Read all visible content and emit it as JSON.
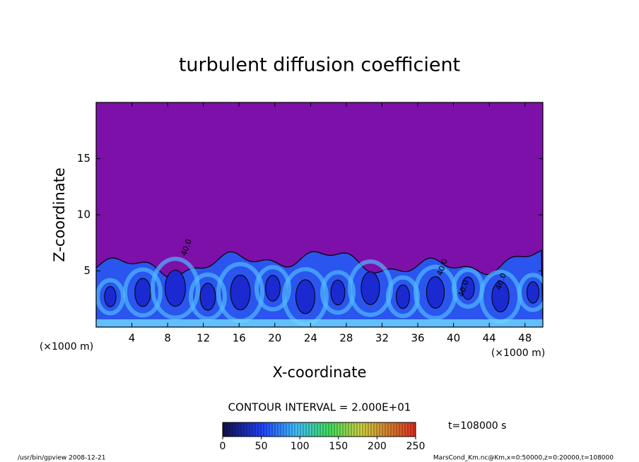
{
  "chart_data": {
    "type": "contour",
    "title": "turbulent diffusion coefficient",
    "xlabel": "X-coordinate",
    "ylabel": "Z-coordinate",
    "x_unit_label": "(×1000 m)",
    "y_unit_label": "(×1000 m)",
    "xlim": [
      0,
      50
    ],
    "xticks": [
      4,
      8,
      12,
      16,
      20,
      24,
      28,
      32,
      36,
      40,
      44,
      48
    ],
    "ylim": [
      0,
      20
    ],
    "yticks": [
      5,
      10,
      15
    ],
    "contour_labels": [
      "40.0",
      "40.0",
      "40.0",
      "40.0"
    ],
    "contour_interval": "CONTOUR INTERVAL = 2.000E+01",
    "colorbar_lim": [
      0,
      250
    ],
    "colorbar_ticks": [
      0,
      50,
      100,
      150,
      200,
      250
    ],
    "time_label": "t=108000 s",
    "footer_left": "/usr/bin/gpview   2008-12-21",
    "footer_right": "MarsCond_Km.nc@Km,x=0:50000,z=0:20000,t=108000"
  }
}
